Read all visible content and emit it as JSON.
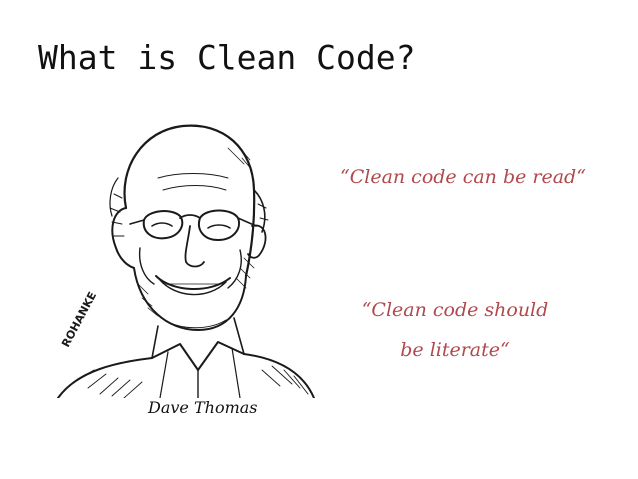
{
  "slide": {
    "title": "What is Clean Code?",
    "portrait": {
      "signature": "ROHANKE",
      "caption": "Dave Thomas"
    },
    "quotes": [
      {
        "lines": [
          "“Clean code can be read“"
        ]
      },
      {
        "lines": [
          "“Clean code should",
          "be literate“"
        ]
      }
    ],
    "colors": {
      "title": "#111111",
      "quote": "#b1484c",
      "background": "#ffffff"
    }
  }
}
